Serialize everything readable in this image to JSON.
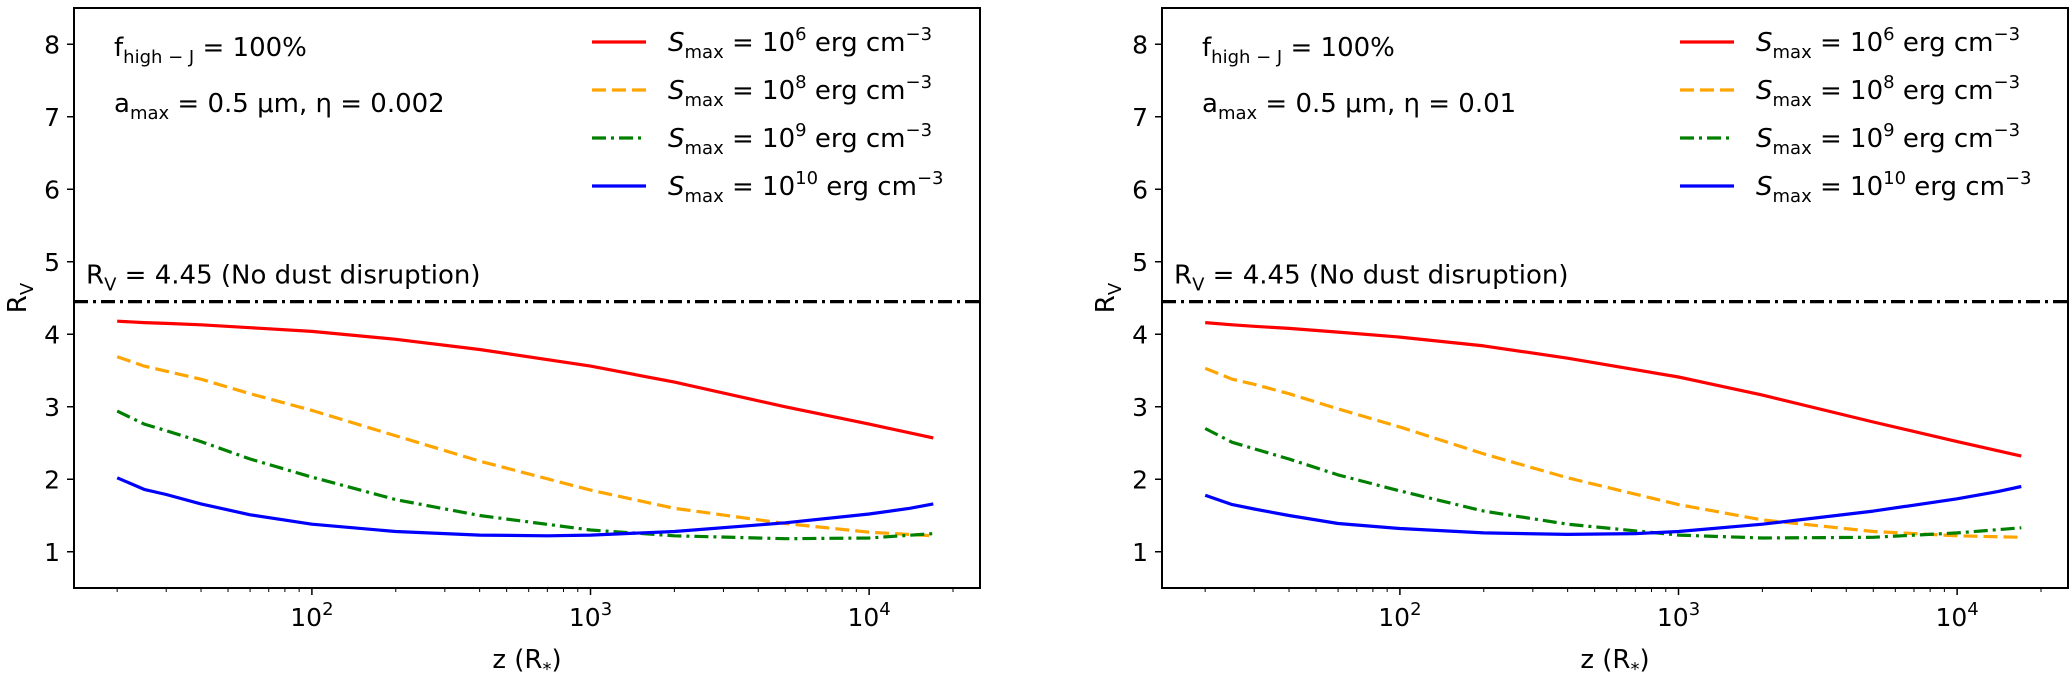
{
  "figure": {
    "type": "two-panel line chart",
    "panels": 2
  },
  "chart_data": [
    {
      "type": "line",
      "panel": "left",
      "xscale": "log",
      "xlim": [
        14,
        25000
      ],
      "ylim": [
        0.5,
        8.5
      ],
      "xlabel": {
        "base": "z (R",
        "sub": "*",
        "tail": ")"
      },
      "ylabel": {
        "base": "R",
        "sub": "V"
      },
      "x_ticks": [
        {
          "value": 100,
          "base": "10",
          "exp": "2"
        },
        {
          "value": 1000,
          "base": "10",
          "exp": "3"
        },
        {
          "value": 10000,
          "base": "10",
          "exp": "4"
        }
      ],
      "y_ticks": [
        1,
        2,
        3,
        4,
        5,
        6,
        7,
        8
      ],
      "annotations": [
        {
          "name": "f-high-j",
          "base": "f",
          "sub": "high − J",
          "text": " = 100%"
        },
        {
          "name": "params",
          "a_base": "a",
          "a_sub": "max",
          "text": " = 0.5 μm, η = 0.002"
        }
      ],
      "reference_line": {
        "y": 4.45,
        "label_base": "R",
        "label_sub": "V",
        "label_text": " = 4.45 (No dust disruption)",
        "color": "#000000",
        "style": "dashdot"
      },
      "series": [
        {
          "name": "S_max = 10^6 erg cm^-3",
          "legend_exp": "6",
          "color": "#ff0000",
          "style": "solid",
          "x": [
            20,
            25,
            30,
            40,
            60,
            100,
            200,
            400,
            1000,
            2000,
            5000,
            10000,
            17000
          ],
          "y": [
            4.18,
            4.16,
            4.15,
            4.13,
            4.09,
            4.04,
            3.93,
            3.79,
            3.56,
            3.34,
            3.0,
            2.76,
            2.57
          ]
        },
        {
          "name": "S_max = 10^8 erg cm^-3",
          "legend_exp": "8",
          "color": "#ffa500",
          "style": "dashed",
          "x": [
            20,
            25,
            30,
            40,
            60,
            100,
            200,
            400,
            1000,
            2000,
            5000,
            10000,
            17000
          ],
          "y": [
            3.69,
            3.56,
            3.49,
            3.38,
            3.18,
            2.95,
            2.6,
            2.25,
            1.85,
            1.6,
            1.39,
            1.27,
            1.22
          ]
        },
        {
          "name": "S_max = 10^9 erg cm^-3",
          "legend_exp": "9",
          "color": "#008000",
          "style": "dashdot",
          "x": [
            20,
            25,
            30,
            40,
            60,
            100,
            200,
            400,
            1000,
            2000,
            5000,
            10000,
            17000
          ],
          "y": [
            2.94,
            2.76,
            2.67,
            2.52,
            2.28,
            2.03,
            1.72,
            1.5,
            1.3,
            1.22,
            1.18,
            1.19,
            1.25
          ]
        },
        {
          "name": "S_max = 10^10 erg cm^-3",
          "legend_exp": "10",
          "color": "#0000ff",
          "style": "solid",
          "x": [
            20,
            25,
            30,
            40,
            60,
            100,
            200,
            400,
            700,
            1000,
            2000,
            5000,
            10000,
            14000,
            17000
          ],
          "y": [
            2.02,
            1.86,
            1.79,
            1.66,
            1.51,
            1.38,
            1.28,
            1.23,
            1.22,
            1.23,
            1.28,
            1.4,
            1.52,
            1.6,
            1.66
          ]
        }
      ]
    },
    {
      "type": "line",
      "panel": "right",
      "xscale": "log",
      "xlim": [
        14,
        25000
      ],
      "ylim": [
        0.5,
        8.5
      ],
      "xlabel": {
        "base": "z (R",
        "sub": "*",
        "tail": ")"
      },
      "ylabel": {
        "base": "R",
        "sub": "V"
      },
      "x_ticks": [
        {
          "value": 100,
          "base": "10",
          "exp": "2"
        },
        {
          "value": 1000,
          "base": "10",
          "exp": "3"
        },
        {
          "value": 10000,
          "base": "10",
          "exp": "4"
        }
      ],
      "y_ticks": [
        1,
        2,
        3,
        4,
        5,
        6,
        7,
        8
      ],
      "annotations": [
        {
          "name": "f-high-j",
          "base": "f",
          "sub": "high − J",
          "text": " = 100%"
        },
        {
          "name": "params",
          "a_base": "a",
          "a_sub": "max",
          "text": " = 0.5 μm, η = 0.01"
        }
      ],
      "reference_line": {
        "y": 4.45,
        "label_base": "R",
        "label_sub": "V",
        "label_text": " = 4.45 (No dust disruption)",
        "color": "#000000",
        "style": "dashdot"
      },
      "series": [
        {
          "name": "S_max = 10^6 erg cm^-3",
          "legend_exp": "6",
          "color": "#ff0000",
          "style": "solid",
          "x": [
            20,
            25,
            30,
            40,
            60,
            100,
            200,
            400,
            1000,
            2000,
            5000,
            10000,
            17000
          ],
          "y": [
            4.16,
            4.13,
            4.11,
            4.08,
            4.03,
            3.96,
            3.84,
            3.67,
            3.41,
            3.16,
            2.79,
            2.52,
            2.32
          ]
        },
        {
          "name": "S_max = 10^8 erg cm^-3",
          "legend_exp": "8",
          "color": "#ffa500",
          "style": "dashed",
          "x": [
            20,
            25,
            30,
            40,
            60,
            100,
            200,
            400,
            1000,
            2000,
            5000,
            10000,
            17000
          ],
          "y": [
            3.53,
            3.38,
            3.31,
            3.18,
            2.97,
            2.72,
            2.35,
            2.02,
            1.65,
            1.44,
            1.28,
            1.22,
            1.2
          ]
        },
        {
          "name": "S_max = 10^9 erg cm^-3",
          "legend_exp": "9",
          "color": "#008000",
          "style": "dashdot",
          "x": [
            20,
            25,
            30,
            40,
            60,
            100,
            200,
            400,
            1000,
            2000,
            5000,
            10000,
            17000
          ],
          "y": [
            2.7,
            2.51,
            2.42,
            2.28,
            2.06,
            1.84,
            1.56,
            1.38,
            1.23,
            1.19,
            1.2,
            1.26,
            1.33
          ]
        },
        {
          "name": "S_max = 10^10 erg cm^-3",
          "legend_exp": "10",
          "color": "#0000ff",
          "style": "solid",
          "x": [
            20,
            25,
            30,
            40,
            60,
            100,
            200,
            400,
            700,
            1000,
            2000,
            5000,
            10000,
            14000,
            17000
          ],
          "y": [
            1.78,
            1.65,
            1.59,
            1.5,
            1.39,
            1.32,
            1.26,
            1.24,
            1.25,
            1.28,
            1.38,
            1.56,
            1.73,
            1.83,
            1.9
          ]
        }
      ]
    }
  ]
}
